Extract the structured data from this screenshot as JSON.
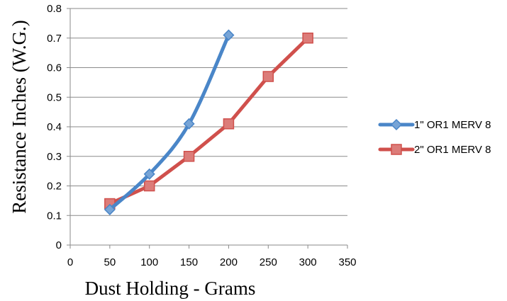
{
  "chart_data": {
    "type": "line",
    "title": "",
    "xlabel": "Dust Holding - Grams",
    "ylabel": "Resistance Inches (W.G.)",
    "xlim": [
      0,
      350
    ],
    "ylim": [
      0,
      0.8
    ],
    "x_ticks": [
      0,
      50,
      100,
      150,
      200,
      250,
      300,
      350
    ],
    "y_ticks": [
      0,
      0.1,
      0.2,
      0.3,
      0.4,
      0.5,
      0.6,
      0.7,
      0.8
    ],
    "x_tick_labels": [
      "0",
      "50",
      "100",
      "150",
      "200",
      "250",
      "300",
      "350"
    ],
    "y_tick_labels": [
      "0",
      "0.1",
      "0.2",
      "0.3",
      "0.4",
      "0.5",
      "0.6",
      "0.7",
      "0.8"
    ],
    "grid": "horizontal",
    "legend_position": "right",
    "series": [
      {
        "name": "1\" OR1 MERV 8",
        "color": "#4a86c8",
        "marker": "diamond",
        "x": [
          50,
          100,
          150,
          200
        ],
        "y": [
          0.12,
          0.24,
          0.41,
          0.71
        ]
      },
      {
        "name": "2\" OR1 MERV 8",
        "color": "#d0504c",
        "marker": "square",
        "x": [
          50,
          100,
          150,
          200,
          250,
          300
        ],
        "y": [
          0.14,
          0.2,
          0.3,
          0.41,
          0.57,
          0.7
        ]
      }
    ]
  }
}
